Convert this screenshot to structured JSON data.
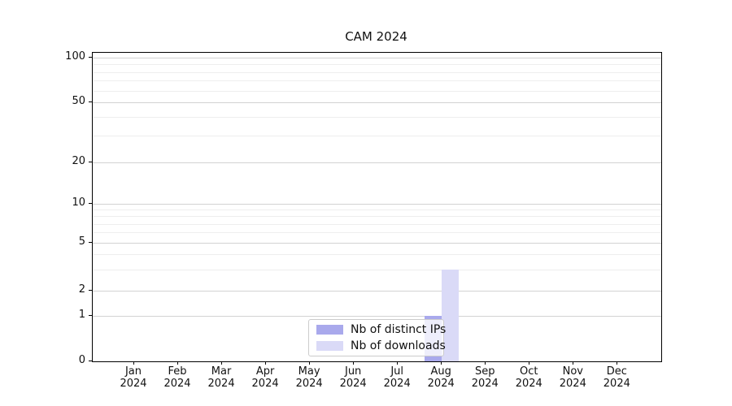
{
  "title": "CAM 2024",
  "chart_data": {
    "type": "bar",
    "title": "CAM 2024",
    "categories": [
      "Jan 2024",
      "Feb 2024",
      "Mar 2024",
      "Apr 2024",
      "May 2024",
      "Jun 2024",
      "Jul 2024",
      "Aug 2024",
      "Sep 2024",
      "Oct 2024",
      "Nov 2024",
      "Dec 2024"
    ],
    "x_tick_months": [
      "Jan",
      "Feb",
      "Mar",
      "Apr",
      "May",
      "Jun",
      "Jul",
      "Aug",
      "Sep",
      "Oct",
      "Nov",
      "Dec"
    ],
    "x_tick_year": "2024",
    "series": [
      {
        "name": "Nb of distinct IPs",
        "color": "#a9a9ec",
        "values": [
          0,
          0,
          0,
          0,
          0,
          0,
          0,
          1,
          0,
          0,
          0,
          0
        ]
      },
      {
        "name": "Nb of downloads",
        "color": "#dadaf7",
        "values": [
          0,
          0,
          0,
          0,
          0,
          0,
          0,
          3,
          0,
          0,
          0,
          0
        ]
      }
    ],
    "xlabel": "",
    "ylabel": "",
    "yscale": "symlog",
    "y_ticks": [
      0,
      1,
      2,
      5,
      10,
      20,
      50,
      100
    ],
    "y_minor_ticks": [
      3,
      4,
      6,
      7,
      8,
      9,
      30,
      40,
      60,
      70,
      80,
      90
    ],
    "ylim": [
      0,
      108
    ],
    "grid": "horizontal",
    "legend_position": "lower center (inside plot)"
  },
  "legend": {
    "items": [
      {
        "label": "Nb of distinct IPs",
        "color": "#a9a9ec"
      },
      {
        "label": "Nb of downloads",
        "color": "#dadaf7"
      }
    ]
  },
  "colors": {
    "distinct_ips_bar": "#a9a9ec",
    "downloads_bar": "#dadaf7",
    "grid_major": "#d2d2d2",
    "grid_minor": "#eeeeee",
    "spine": "#000000",
    "legend_border": "#cccccc"
  }
}
